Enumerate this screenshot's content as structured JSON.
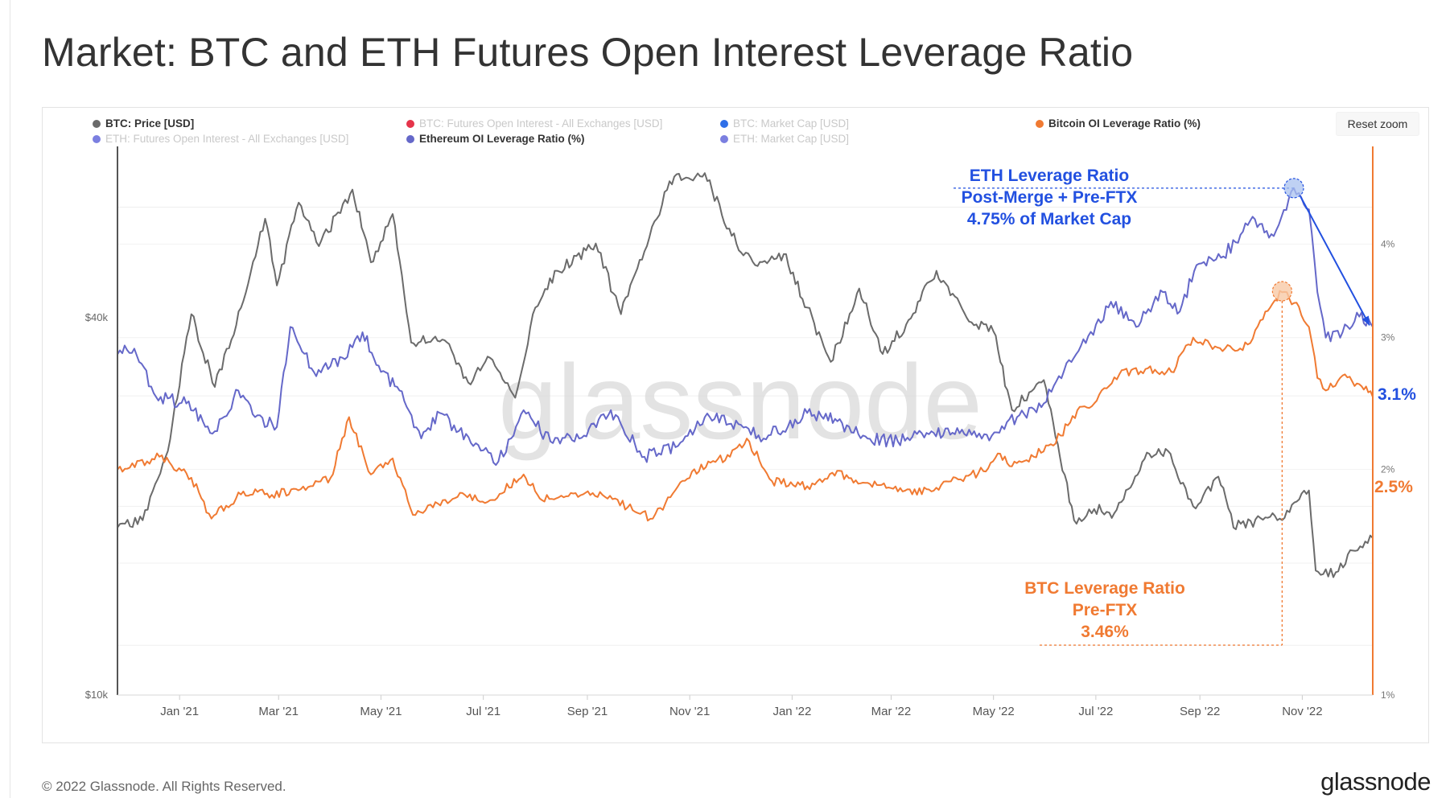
{
  "title": "Market: BTC and ETH Futures Open Interest Leverage Ratio",
  "reset_zoom": "Reset zoom",
  "watermark": "glassnode",
  "footer": {
    "copyright": "© 2022 Glassnode. All Rights Reserved.",
    "brand": "glassnode"
  },
  "legend": [
    {
      "label": "BTC: Price [USD]",
      "color": "#6b6b6b",
      "visible": true
    },
    {
      "label": "BTC: Futures Open Interest - All Exchanges [USD]",
      "color": "#e5344a",
      "visible": false
    },
    {
      "label": "BTC: Market Cap [USD]",
      "color": "#2f6fe8",
      "visible": false
    },
    {
      "label": "Bitcoin OI Leverage Ratio (%)",
      "color": "#f07a32",
      "visible": true
    },
    {
      "label": "ETH: Futures Open Interest - All Exchanges [USD]",
      "color": "#7b7fe0",
      "visible": false
    },
    {
      "label": "Ethereum OI Leverage Ratio (%)",
      "color": "#6568c9",
      "visible": true
    },
    {
      "label": "ETH: Market Cap [USD]",
      "color": "#7b7fe0",
      "visible": false
    }
  ],
  "annotations": {
    "eth": {
      "lines": [
        "ETH Leverage Ratio",
        "Post-Merge + Pre-FTX",
        "4.75% of Market Cap"
      ],
      "color": "#2250e0"
    },
    "btc": {
      "lines": [
        "BTC Leverage Ratio",
        "Pre-FTX",
        "3.46%"
      ],
      "color": "#f07a32"
    },
    "eth_end": "3.1%",
    "btc_end": "2.5%"
  },
  "chart_data": {
    "type": "line",
    "title": "Market: BTC and ETH Futures Open Interest Leverage Ratio",
    "x_range": [
      "2020-11-25",
      "2022-12-13"
    ],
    "x_ticks": [
      "Jan '21",
      "Mar '21",
      "May '21",
      "Jul '21",
      "Sep '21",
      "Nov '21",
      "Jan '22",
      "Mar '22",
      "May '22",
      "Jul '22",
      "Sep '22",
      "Nov '22"
    ],
    "y_left": {
      "scale": "log",
      "label": "BTC: Price [USD]",
      "ticks": [
        "$10k",
        "$40k"
      ],
      "range": [
        10000,
        75000
      ]
    },
    "y_right": {
      "scale": "log",
      "label": "Leverage Ratio (%)",
      "ticks": [
        "1%",
        "2%",
        "3%",
        "4%"
      ],
      "range": [
        1,
        5.4
      ]
    },
    "grid": true,
    "legend_position": "top",
    "series": [
      {
        "name": "BTC: Price [USD]",
        "axis": "left",
        "color": "#6b6b6b",
        "points": [
          [
            "2020-11-25",
            18500
          ],
          [
            "2020-12-10",
            19000
          ],
          [
            "2020-12-25",
            24500
          ],
          [
            "2021-01-08",
            40500
          ],
          [
            "2021-01-22",
            31000
          ],
          [
            "2021-02-08",
            42500
          ],
          [
            "2021-02-21",
            57500
          ],
          [
            "2021-02-28",
            45000
          ],
          [
            "2021-03-13",
            61000
          ],
          [
            "2021-03-25",
            52000
          ],
          [
            "2021-04-14",
            64000
          ],
          [
            "2021-04-25",
            49000
          ],
          [
            "2021-05-08",
            58500
          ],
          [
            "2021-05-19",
            36500
          ],
          [
            "2021-06-01",
            37000
          ],
          [
            "2021-06-12",
            35500
          ],
          [
            "2021-06-22",
            31500
          ],
          [
            "2021-07-05",
            34500
          ],
          [
            "2021-07-20",
            29800
          ],
          [
            "2021-08-01",
            41500
          ],
          [
            "2021-08-14",
            47500
          ],
          [
            "2021-09-06",
            52500
          ],
          [
            "2021-09-21",
            40500
          ],
          [
            "2021-10-05",
            51000
          ],
          [
            "2021-10-20",
            66000
          ],
          [
            "2021-11-10",
            68000
          ],
          [
            "2021-11-26",
            54000
          ],
          [
            "2021-12-10",
            48500
          ],
          [
            "2021-12-27",
            50500
          ],
          [
            "2022-01-10",
            41500
          ],
          [
            "2022-01-24",
            34000
          ],
          [
            "2022-02-10",
            44500
          ],
          [
            "2022-02-24",
            35000
          ],
          [
            "2022-03-10",
            39000
          ],
          [
            "2022-03-28",
            47500
          ],
          [
            "2022-04-15",
            40000
          ],
          [
            "2022-05-01",
            38000
          ],
          [
            "2022-05-12",
            28500
          ],
          [
            "2022-05-31",
            31800
          ],
          [
            "2022-06-18",
            19000
          ],
          [
            "2022-06-30",
            19800
          ],
          [
            "2022-07-12",
            19500
          ],
          [
            "2022-07-30",
            23800
          ],
          [
            "2022-08-13",
            24500
          ],
          [
            "2022-08-28",
            20000
          ],
          [
            "2022-09-12",
            22300
          ],
          [
            "2022-09-21",
            18500
          ],
          [
            "2022-10-10",
            19200
          ],
          [
            "2022-10-20",
            19000
          ],
          [
            "2022-11-05",
            21200
          ],
          [
            "2022-11-09",
            15800
          ],
          [
            "2022-11-21",
            15700
          ],
          [
            "2022-12-01",
            17000
          ],
          [
            "2022-12-13",
            17800
          ]
        ]
      },
      {
        "name": "Bitcoin OI Leverage Ratio (%)",
        "axis": "right",
        "color": "#f07a32",
        "points": [
          [
            "2020-11-25",
            2.0
          ],
          [
            "2020-12-20",
            2.08
          ],
          [
            "2021-01-08",
            1.95
          ],
          [
            "2021-01-20",
            1.72
          ],
          [
            "2021-02-08",
            1.87
          ],
          [
            "2021-02-25",
            1.85
          ],
          [
            "2021-03-20",
            1.9
          ],
          [
            "2021-04-01",
            1.95
          ],
          [
            "2021-04-12",
            2.35
          ],
          [
            "2021-04-25",
            1.97
          ],
          [
            "2021-05-08",
            2.07
          ],
          [
            "2021-05-20",
            1.74
          ],
          [
            "2021-06-01",
            1.78
          ],
          [
            "2021-06-20",
            1.85
          ],
          [
            "2021-07-05",
            1.82
          ],
          [
            "2021-07-25",
            1.97
          ],
          [
            "2021-08-05",
            1.82
          ],
          [
            "2021-08-25",
            1.86
          ],
          [
            "2021-09-10",
            1.85
          ],
          [
            "2021-09-25",
            1.78
          ],
          [
            "2021-10-10",
            1.72
          ],
          [
            "2021-10-25",
            1.9
          ],
          [
            "2021-11-12",
            2.05
          ],
          [
            "2021-11-25",
            2.08
          ],
          [
            "2021-12-05",
            2.2
          ],
          [
            "2021-12-20",
            1.93
          ],
          [
            "2022-01-10",
            1.9
          ],
          [
            "2022-01-25",
            1.98
          ],
          [
            "2022-02-15",
            1.92
          ],
          [
            "2022-03-05",
            1.87
          ],
          [
            "2022-03-25",
            1.87
          ],
          [
            "2022-04-10",
            1.94
          ],
          [
            "2022-04-25",
            1.99
          ],
          [
            "2022-05-05",
            2.1
          ],
          [
            "2022-05-12",
            2.02
          ],
          [
            "2022-05-25",
            2.08
          ],
          [
            "2022-06-10",
            2.22
          ],
          [
            "2022-06-20",
            2.4
          ],
          [
            "2022-06-30",
            2.45
          ],
          [
            "2022-07-15",
            2.68
          ],
          [
            "2022-08-01",
            2.73
          ],
          [
            "2022-08-15",
            2.7
          ],
          [
            "2022-08-28",
            3.0
          ],
          [
            "2022-09-10",
            2.92
          ],
          [
            "2022-09-22",
            2.88
          ],
          [
            "2022-10-01",
            2.95
          ],
          [
            "2022-10-10",
            3.25
          ],
          [
            "2022-10-20",
            3.45
          ],
          [
            "2022-10-30",
            3.3
          ],
          [
            "2022-11-05",
            3.1
          ],
          [
            "2022-11-10",
            2.65
          ],
          [
            "2022-11-15",
            2.55
          ],
          [
            "2022-11-25",
            2.67
          ],
          [
            "2022-12-05",
            2.6
          ],
          [
            "2022-12-13",
            2.5
          ]
        ]
      },
      {
        "name": "Ethereum OI Leverage Ratio (%)",
        "axis": "right",
        "color": "#6568c9",
        "points": [
          [
            "2020-11-25",
            2.85
          ],
          [
            "2020-12-05",
            2.9
          ],
          [
            "2020-12-18",
            2.5
          ],
          [
            "2021-01-05",
            2.45
          ],
          [
            "2021-01-22",
            2.25
          ],
          [
            "2021-02-05",
            2.55
          ],
          [
            "2021-02-15",
            2.35
          ],
          [
            "2021-02-28",
            2.28
          ],
          [
            "2021-03-08",
            3.1
          ],
          [
            "2021-03-22",
            2.7
          ],
          [
            "2021-04-08",
            2.82
          ],
          [
            "2021-04-20",
            3.05
          ],
          [
            "2021-05-01",
            2.7
          ],
          [
            "2021-05-12",
            2.55
          ],
          [
            "2021-05-25",
            2.2
          ],
          [
            "2021-06-05",
            2.38
          ],
          [
            "2021-06-25",
            2.15
          ],
          [
            "2021-07-10",
            2.05
          ],
          [
            "2021-07-25",
            2.4
          ],
          [
            "2021-08-10",
            2.18
          ],
          [
            "2021-08-30",
            2.22
          ],
          [
            "2021-09-15",
            2.4
          ],
          [
            "2021-10-05",
            2.08
          ],
          [
            "2021-10-25",
            2.15
          ],
          [
            "2021-11-10",
            2.35
          ],
          [
            "2021-11-30",
            2.3
          ],
          [
            "2021-12-15",
            2.2
          ],
          [
            "2022-01-10",
            2.38
          ],
          [
            "2022-01-28",
            2.32
          ],
          [
            "2022-02-15",
            2.2
          ],
          [
            "2022-03-05",
            2.18
          ],
          [
            "2022-03-25",
            2.25
          ],
          [
            "2022-04-15",
            2.22
          ],
          [
            "2022-04-30",
            2.22
          ],
          [
            "2022-05-15",
            2.35
          ],
          [
            "2022-05-31",
            2.45
          ],
          [
            "2022-06-15",
            2.8
          ],
          [
            "2022-06-25",
            2.95
          ],
          [
            "2022-07-10",
            3.35
          ],
          [
            "2022-07-25",
            3.1
          ],
          [
            "2022-08-10",
            3.45
          ],
          [
            "2022-08-20",
            3.25
          ],
          [
            "2022-08-30",
            3.75
          ],
          [
            "2022-09-15",
            3.85
          ],
          [
            "2022-10-01",
            4.3
          ],
          [
            "2022-10-15",
            4.1
          ],
          [
            "2022-10-27",
            4.75
          ],
          [
            "2022-11-05",
            4.45
          ],
          [
            "2022-11-10",
            3.45
          ],
          [
            "2022-11-15",
            3.0
          ],
          [
            "2022-11-25",
            3.05
          ],
          [
            "2022-12-05",
            3.2
          ],
          [
            "2022-12-13",
            3.1
          ]
        ]
      }
    ],
    "markers": [
      {
        "series": "Ethereum OI Leverage Ratio (%)",
        "date": "2022-10-27",
        "value": 4.75
      },
      {
        "series": "Bitcoin OI Leverage Ratio (%)",
        "date": "2022-10-20",
        "value": 3.46
      }
    ]
  }
}
